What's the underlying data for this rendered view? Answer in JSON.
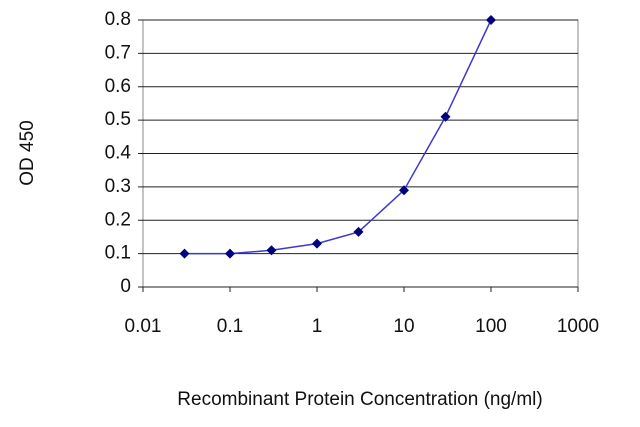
{
  "chart_data": {
    "type": "line",
    "x_label": "Recombinant Protein Concentration (ng/ml)",
    "y_label": "OD 450",
    "x": [
      0.03,
      0.1,
      0.3,
      1,
      3,
      10,
      30,
      100
    ],
    "series": [
      {
        "color": "#3a3ad0",
        "marker_color": "#000080",
        "values": [
          0.1,
          0.1,
          0.11,
          0.13,
          0.165,
          0.29,
          0.51,
          0.8
        ]
      }
    ],
    "x_log": true,
    "xlim": [
      0.01,
      1000
    ],
    "xticks": [
      0.01,
      0.1,
      1,
      10,
      100,
      1000
    ],
    "ylim": [
      0,
      0.8
    ],
    "yticks": [
      0,
      0.1,
      0.2,
      0.3,
      0.4,
      0.5,
      0.6,
      0.7,
      0.8
    ],
    "grid": true
  }
}
